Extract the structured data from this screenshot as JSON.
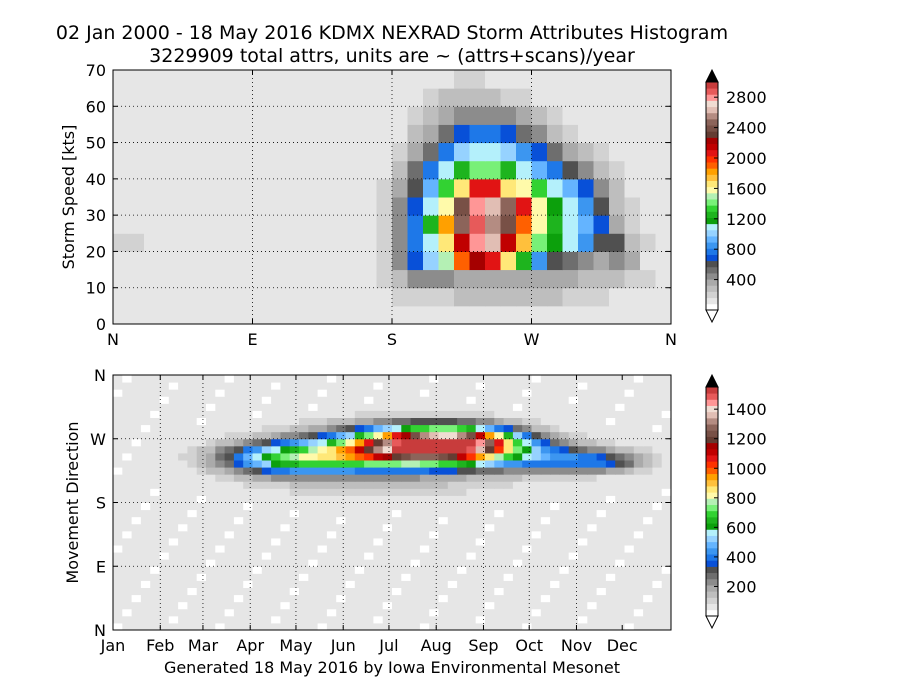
{
  "figure": {
    "title_line1": "02 Jan 2000 - 18 May 2016 KDMX NEXRAD Storm Attributes Histogram",
    "title_line2": "3229909 total attrs, units are ~ (attrs+scans)/year",
    "footer": "Generated 18 May 2016 by Iowa Environmental Mesonet"
  },
  "colors": {
    "scale": [
      "#ffffff",
      "#e6e6e6",
      "#d2d2d2",
      "#bebebe",
      "#aaaaaa",
      "#8c8c8c",
      "#6e6e6e",
      "#505050",
      "#0850d8",
      "#1e78e8",
      "#3c96f0",
      "#64b4ff",
      "#96d2ff",
      "#b4f0fb",
      "#0ca00c",
      "#1eb41e",
      "#32d232",
      "#78f078",
      "#b4f0b4",
      "#fffaaa",
      "#ffe878",
      "#ffc03c",
      "#ffa000",
      "#ff6000",
      "#ff3200",
      "#e11414",
      "#c00000",
      "#a50000",
      "#643c32",
      "#785046",
      "#8c645a",
      "#b48c82",
      "#e1beb4",
      "#f0dcd2",
      "#ff9696",
      "#e75a5a",
      "#c83c3c"
    ],
    "over": "#000000",
    "axis": "#000000",
    "grid": "#000000"
  },
  "chart_data": [
    {
      "type": "heatmap",
      "name": "storm-speed-vs-direction",
      "title": "",
      "xlabel": "",
      "ylabel": "Storm Speed [kts]",
      "x_ticks": [
        "N",
        "E",
        "S",
        "W",
        "N"
      ],
      "x_tick_values": [
        0,
        90,
        180,
        270,
        360
      ],
      "y_ticks": [
        "0",
        "10",
        "20",
        "30",
        "40",
        "50",
        "60",
        "70"
      ],
      "y_tick_values": [
        0,
        10,
        20,
        30,
        40,
        50,
        60,
        70
      ],
      "xlim": [
        0,
        360
      ],
      "ylim": [
        0,
        70
      ],
      "grid": true,
      "colorbar": {
        "ticks": [
          "400",
          "800",
          "1200",
          "1600",
          "2000",
          "2400",
          "2800"
        ],
        "tick_values": [
          400,
          800,
          1200,
          1600,
          2000,
          2400,
          2800
        ],
        "range": [
          0,
          3000
        ]
      },
      "cells": {
        "x_start": 0,
        "x_step": 10,
        "y_start": 0,
        "y_step": 5,
        "note_rows": "row 0 is speed 0-5 kts, up to row 13 = 65-70 kts; each row has 36 direction bins of 10 degrees",
        "values": [
          [
            30,
            30,
            30,
            30,
            30,
            30,
            30,
            30,
            30,
            30,
            30,
            30,
            30,
            30,
            30,
            30,
            55,
            55,
            55,
            55,
            55,
            55,
            55,
            55,
            55,
            55,
            55,
            55,
            55,
            55,
            55,
            55,
            55,
            55,
            55,
            30
          ],
          [
            90,
            90,
            90,
            90,
            90,
            90,
            90,
            90,
            90,
            90,
            70,
            70,
            70,
            90,
            90,
            90,
            110,
            110,
            160,
            190,
            200,
            200,
            260,
            280,
            280,
            280,
            280,
            280,
            210,
            180,
            180,
            140,
            110,
            110,
            110,
            55
          ],
          [
            90,
            90,
            90,
            90,
            60,
            60,
            60,
            60,
            60,
            60,
            60,
            60,
            60,
            60,
            60,
            60,
            80,
            130,
            260,
            400,
            420,
            380,
            360,
            350,
            340,
            330,
            340,
            330,
            340,
            300,
            280,
            240,
            220,
            150,
            140,
            90
          ],
          [
            70,
            70,
            70,
            70,
            60,
            60,
            60,
            60,
            60,
            60,
            70,
            70,
            70,
            70,
            70,
            70,
            110,
            190,
            420,
            680,
            1000,
            1500,
            1900,
            2250,
            2100,
            1650,
            1250,
            850,
            550,
            470,
            410,
            370,
            380,
            300,
            110,
            80
          ],
          [
            150,
            130,
            60,
            60,
            60,
            60,
            60,
            60,
            60,
            60,
            60,
            60,
            60,
            60,
            60,
            60,
            90,
            180,
            430,
            720,
            1100,
            1700,
            2200,
            2850,
            2700,
            2200,
            1750,
            1400,
            1200,
            1100,
            820,
            620,
            560,
            240,
            160,
            80
          ],
          [
            60,
            60,
            60,
            60,
            60,
            60,
            60,
            60,
            60,
            60,
            60,
            60,
            60,
            60,
            60,
            60,
            80,
            170,
            440,
            760,
            1250,
            1800,
            2500,
            2950,
            2600,
            2400,
            1900,
            1600,
            1250,
            1050,
            880,
            700,
            330,
            190,
            90,
            70
          ],
          [
            60,
            60,
            60,
            60,
            60,
            60,
            60,
            60,
            60,
            60,
            60,
            60,
            60,
            60,
            60,
            60,
            70,
            150,
            400,
            650,
            1100,
            1550,
            2450,
            2850,
            2700,
            2500,
            2050,
            1550,
            1200,
            1050,
            820,
            560,
            290,
            170,
            90,
            70
          ],
          [
            40,
            40,
            40,
            40,
            40,
            40,
            40,
            40,
            40,
            40,
            40,
            40,
            40,
            40,
            40,
            40,
            60,
            130,
            340,
            600,
            900,
            1350,
            1650,
            2050,
            2100,
            1700,
            1600,
            1350,
            1100,
            950,
            640,
            420,
            220,
            100,
            40,
            40
          ],
          [
            40,
            40,
            40,
            40,
            40,
            40,
            40,
            40,
            40,
            40,
            40,
            40,
            40,
            40,
            40,
            40,
            60,
            100,
            280,
            540,
            780,
            1080,
            1250,
            1400,
            1420,
            1250,
            1100,
            950,
            760,
            600,
            400,
            270,
            160,
            40,
            40,
            40
          ],
          [
            30,
            30,
            30,
            30,
            30,
            30,
            30,
            30,
            30,
            30,
            30,
            30,
            30,
            30,
            30,
            30,
            40,
            70,
            170,
            320,
            520,
            760,
            960,
            1080,
            1100,
            1020,
            860,
            700,
            520,
            360,
            250,
            160,
            80,
            30,
            30,
            30
          ],
          [
            30,
            30,
            30,
            30,
            30,
            30,
            30,
            30,
            30,
            30,
            30,
            30,
            30,
            30,
            30,
            30,
            30,
            50,
            110,
            220,
            360,
            520,
            650,
            720,
            720,
            640,
            520,
            380,
            270,
            190,
            120,
            70,
            40,
            30,
            30,
            30
          ],
          [
            30,
            30,
            30,
            30,
            30,
            30,
            30,
            30,
            30,
            30,
            30,
            30,
            30,
            30,
            30,
            30,
            30,
            40,
            70,
            140,
            230,
            330,
            400,
            440,
            440,
            390,
            300,
            220,
            160,
            110,
            60,
            40,
            30,
            30,
            30,
            30
          ],
          [
            30,
            10,
            10,
            10,
            10,
            10,
            10,
            10,
            10,
            10,
            10,
            10,
            10,
            10,
            30,
            30,
            30,
            30,
            50,
            90,
            150,
            210,
            240,
            250,
            240,
            200,
            150,
            110,
            70,
            40,
            30,
            30,
            30,
            30,
            30,
            30
          ],
          [
            30,
            10,
            10,
            10,
            10,
            10,
            10,
            10,
            10,
            10,
            10,
            10,
            10,
            10,
            30,
            30,
            30,
            30,
            30,
            60,
            90,
            120,
            130,
            130,
            120,
            100,
            70,
            50,
            30,
            30,
            30,
            30,
            30,
            30,
            30,
            30
          ]
        ]
      }
    },
    {
      "type": "heatmap",
      "name": "movement-direction-vs-date",
      "title": "",
      "xlabel": "",
      "ylabel": "Movement Direction",
      "x_ticks": [
        "Jan",
        "Feb",
        "Mar",
        "Apr",
        "May",
        "Jun",
        "Jul",
        "Aug",
        "Sep",
        "Oct",
        "Nov",
        "Dec"
      ],
      "x_tick_values": [
        0,
        31,
        59,
        90,
        120,
        151,
        181,
        212,
        243,
        273,
        304,
        334
      ],
      "y_ticks": [
        "N",
        "E",
        "S",
        "W",
        "N"
      ],
      "y_tick_values": [
        0,
        90,
        180,
        270,
        360
      ],
      "xlim": [
        0,
        366
      ],
      "ylim": [
        0,
        360
      ],
      "grid": true,
      "colorbar": {
        "ticks": [
          "200",
          "400",
          "600",
          "800",
          "1000",
          "1200",
          "1400"
        ],
        "tick_values": [
          200,
          400,
          600,
          800,
          1000,
          1200,
          1400
        ],
        "range": [
          0,
          1550
        ]
      },
      "cells": {
        "x_start": 0,
        "x_step": 6.1,
        "y_start": 0,
        "y_step": 10,
        "note_rows": "row 0 is direction 0-10 deg, up to row 35 = 350-360 deg; each row has 60 date bins",
        "peaks": [
          {
            "x": 208,
            "y": 262,
            "sx": 34,
            "sy": 16,
            "amp": 1250
          },
          {
            "x": 232,
            "y": 268,
            "sx": 24,
            "sy": 12,
            "amp": 500
          },
          {
            "x": 165,
            "y": 248,
            "sx": 48,
            "sy": 18,
            "amp": 620
          },
          {
            "x": 110,
            "y": 242,
            "sx": 30,
            "sy": 16,
            "amp": 380
          },
          {
            "x": 270,
            "y": 246,
            "sx": 42,
            "sy": 16,
            "amp": 330
          },
          {
            "x": 320,
            "y": 237,
            "sx": 22,
            "sy": 10,
            "amp": 260
          },
          {
            "x": 200,
            "y": 290,
            "sx": 55,
            "sy": 14,
            "amp": 120
          },
          {
            "x": 180,
            "y": 205,
            "sx": 75,
            "sy": 18,
            "amp": 90
          }
        ],
        "background": 30
      }
    }
  ]
}
